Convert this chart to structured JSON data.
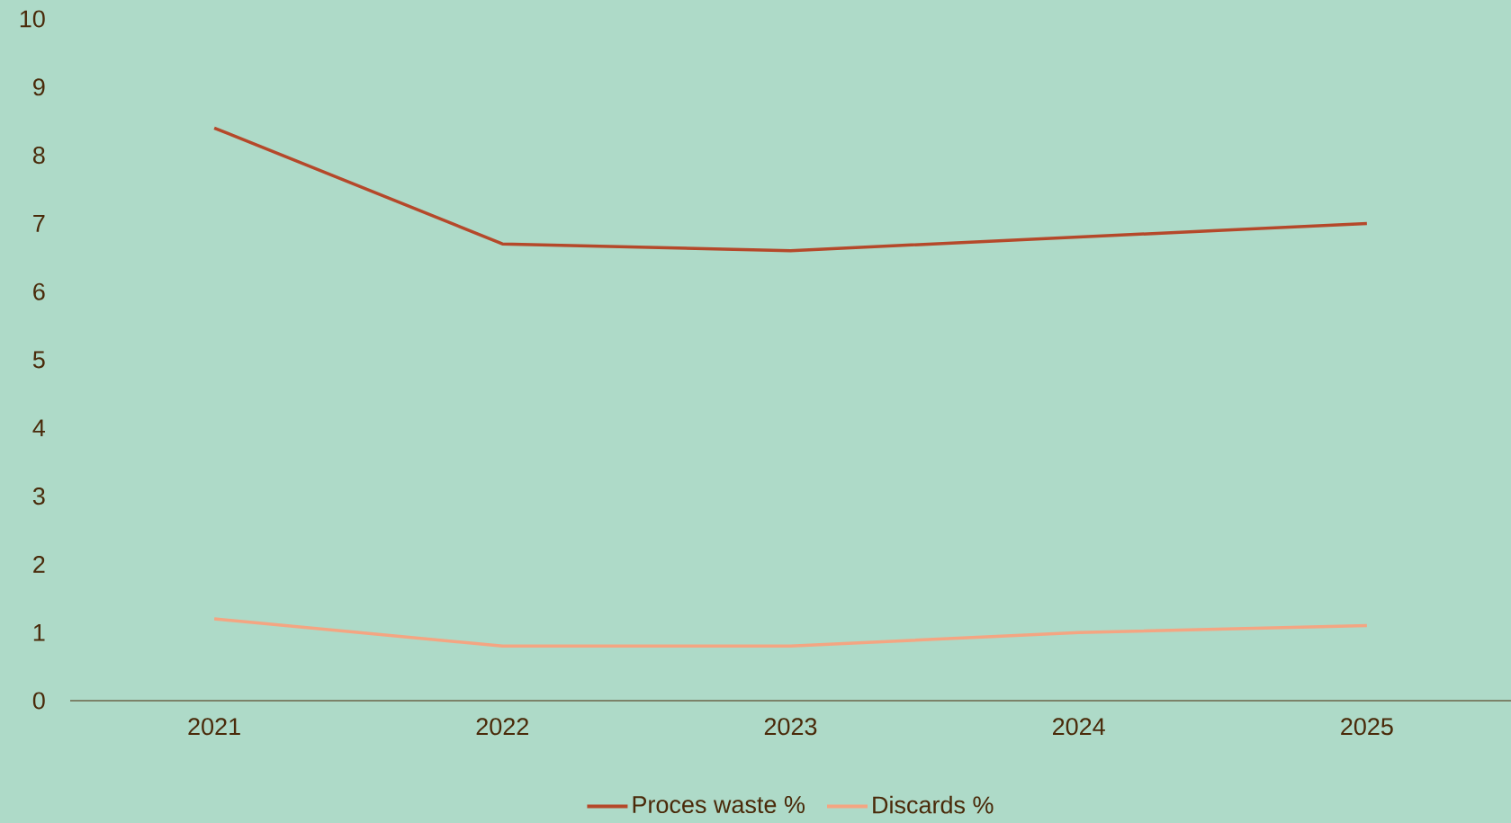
{
  "chart_data": {
    "type": "line",
    "categories": [
      "2021",
      "2022",
      "2023",
      "2024",
      "2025"
    ],
    "series": [
      {
        "name": "Proces waste %",
        "color": "#b5482a",
        "values": [
          8.4,
          6.7,
          6.6,
          6.8,
          7.0
        ]
      },
      {
        "name": "Discards %",
        "color": "#f4a582",
        "values": [
          1.2,
          0.8,
          0.8,
          1.0,
          1.1
        ]
      }
    ],
    "ylim": [
      0,
      10
    ],
    "yticks": [
      0,
      1,
      2,
      3,
      4,
      5,
      6,
      7,
      8,
      9,
      10
    ],
    "legend": "bottom",
    "marker": "none"
  }
}
